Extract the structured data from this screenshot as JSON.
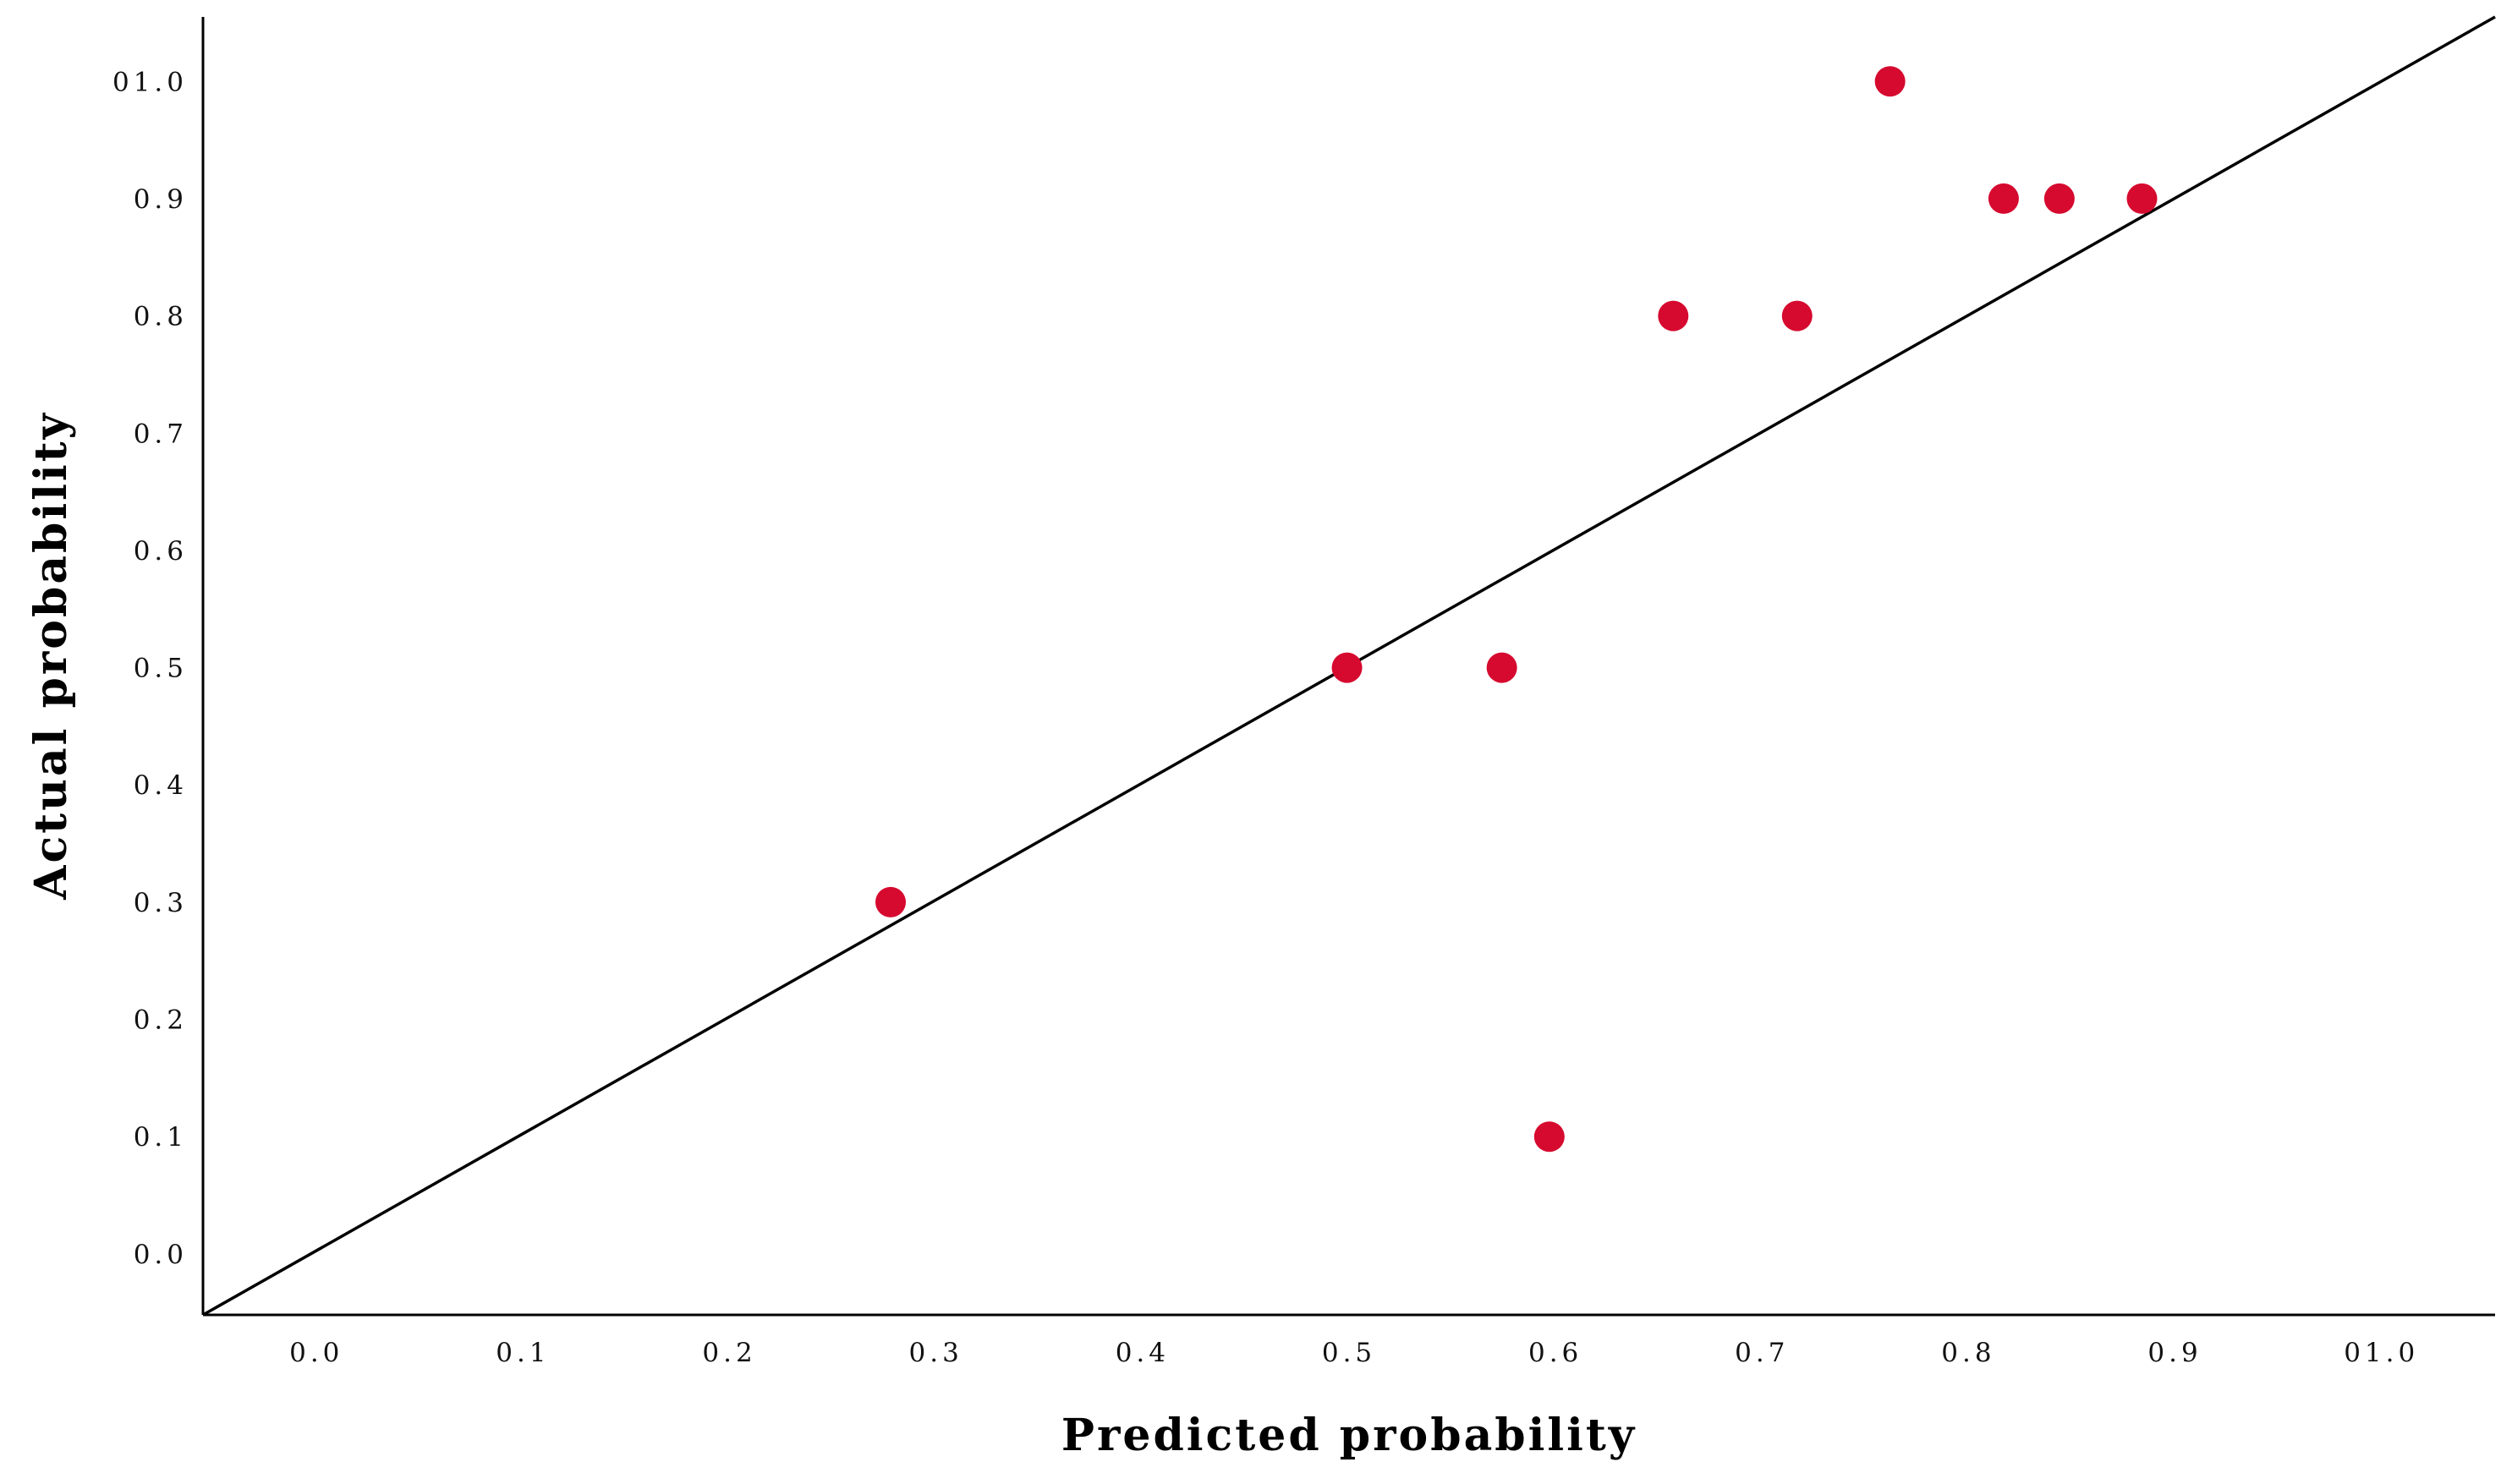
{
  "chart_data": {
    "type": "scatter",
    "xlabel": "Predicted probability",
    "ylabel": "Actual probability",
    "xlim": [
      -0.055,
      1.055
    ],
    "ylim": [
      -0.052,
      1.055
    ],
    "x_ticks": [
      0.0,
      0.1,
      0.2,
      0.3,
      0.4,
      0.5,
      0.6,
      0.7,
      0.8,
      0.9,
      1.0
    ],
    "x_tick_labels": [
      "0.0",
      "0.1",
      "0.2",
      "0.3",
      "0.4",
      "0.5",
      "0.6",
      "0.7",
      "0.8",
      "0.9",
      "01.0"
    ],
    "y_ticks": [
      0.0,
      0.1,
      0.2,
      0.3,
      0.4,
      0.5,
      0.6,
      0.7,
      0.8,
      0.9,
      1.0
    ],
    "y_tick_labels": [
      "0.0",
      "0.1",
      "0.2",
      "0.3",
      "0.4",
      "0.5",
      "0.6",
      "0.7",
      "0.8",
      "0.9",
      "01.0"
    ],
    "reference_line": {
      "from": [
        -0.055,
        -0.052
      ],
      "to": [
        1.055,
        1.055
      ],
      "color": "#000000"
    },
    "grid": false,
    "point_color": "#d6092f",
    "points": [
      {
        "x": 0.278,
        "y": 0.3
      },
      {
        "x": 0.499,
        "y": 0.5
      },
      {
        "x": 0.574,
        "y": 0.5
      },
      {
        "x": 0.597,
        "y": 0.1
      },
      {
        "x": 0.657,
        "y": 0.8
      },
      {
        "x": 0.717,
        "y": 0.8
      },
      {
        "x": 0.762,
        "y": 1.0
      },
      {
        "x": 0.817,
        "y": 0.9
      },
      {
        "x": 0.844,
        "y": 0.9
      },
      {
        "x": 0.884,
        "y": 0.9
      }
    ]
  }
}
